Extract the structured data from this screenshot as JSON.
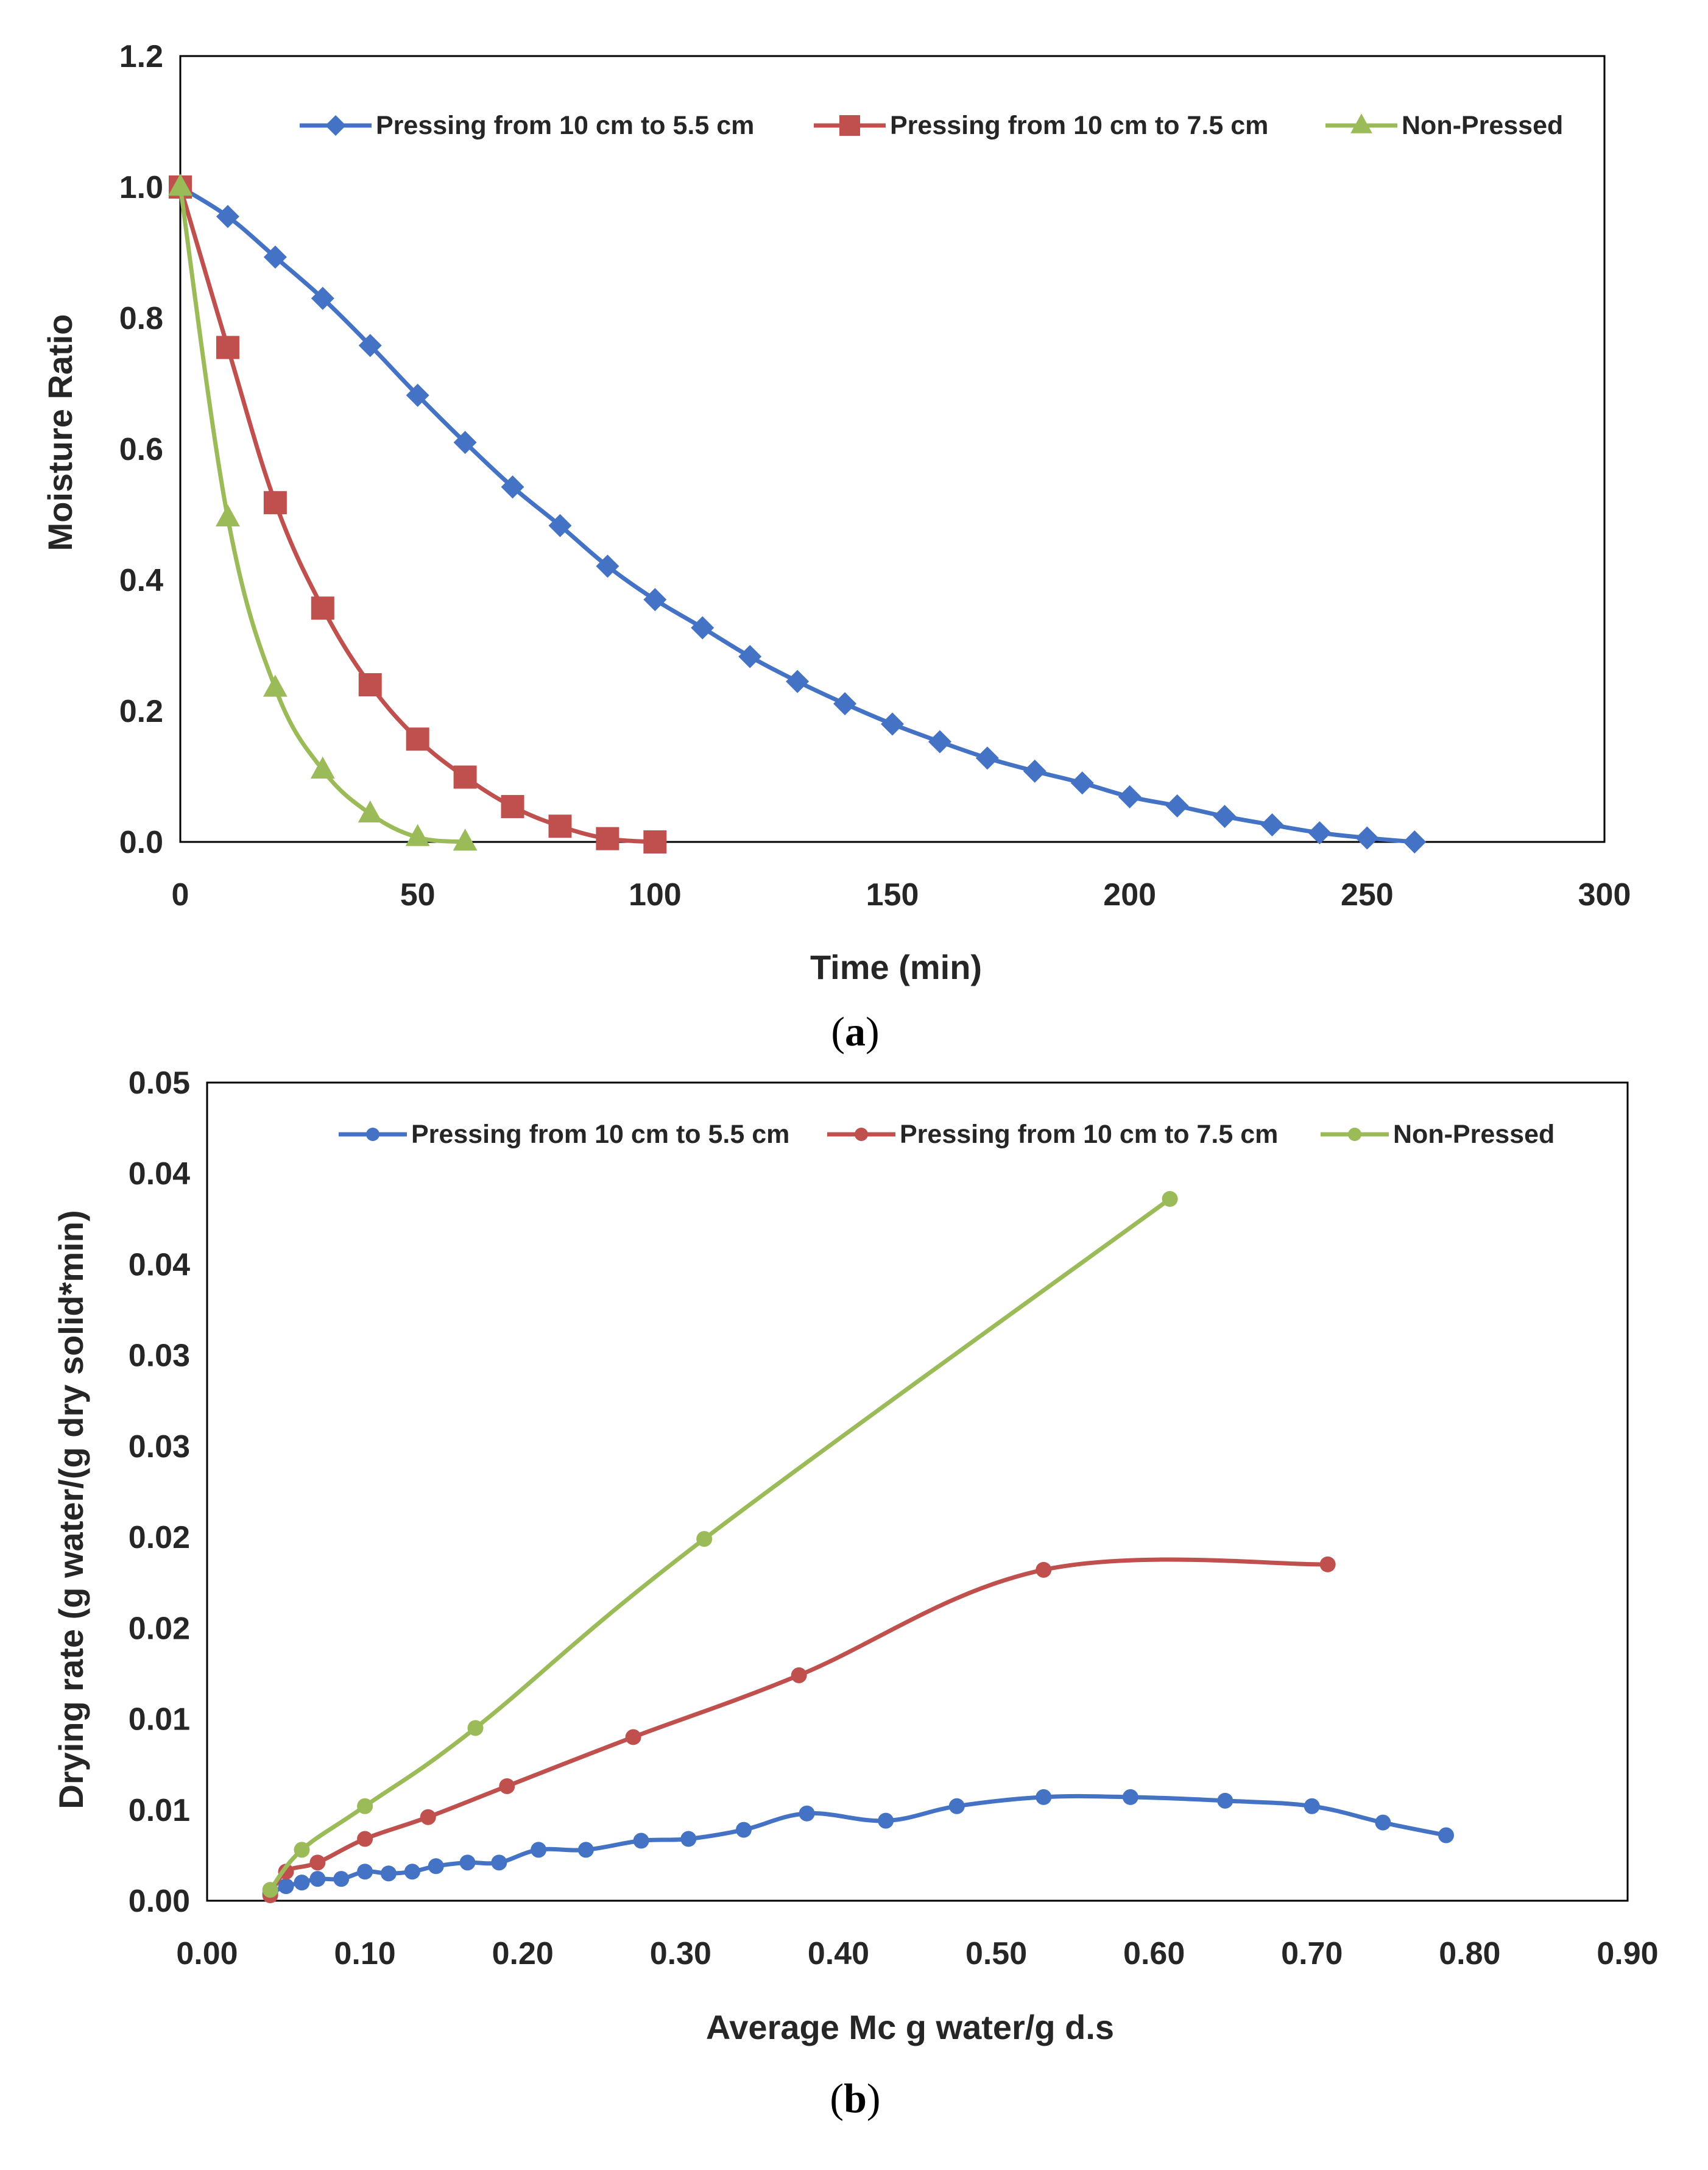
{
  "chart_data": [
    {
      "type": "line",
      "panel": "a",
      "caption_letter": "a",
      "xlabel": "Time (min)",
      "ylabel": "Moisture Ratio",
      "xlim": [
        0,
        300
      ],
      "ylim": [
        0,
        1.2
      ],
      "x_ticks": [
        0,
        50,
        100,
        150,
        200,
        250,
        300
      ],
      "y_ticks": [
        "0.0",
        "0.2",
        "0.4",
        "0.6",
        "0.8",
        "1.0",
        "1.2"
      ],
      "y_tick_values": [
        0,
        0.2,
        0.4,
        0.6,
        0.8,
        1.0,
        1.2
      ],
      "grid": false,
      "legend_position": "top",
      "series": [
        {
          "name": "Pressing from 10 cm to 5.5 cm",
          "color": "#4472C4",
          "marker": "diamond",
          "x": [
            0,
            10,
            20,
            30,
            40,
            50,
            60,
            70,
            80,
            90,
            100,
            110,
            120,
            130,
            140,
            150,
            160,
            170,
            180,
            190,
            200,
            210,
            220,
            230,
            240,
            250,
            260
          ],
          "y": [
            1.0,
            0.955,
            0.893,
            0.83,
            0.758,
            0.682,
            0.61,
            0.542,
            0.483,
            0.421,
            0.37,
            0.327,
            0.283,
            0.245,
            0.211,
            0.18,
            0.153,
            0.128,
            0.108,
            0.09,
            0.069,
            0.055,
            0.039,
            0.026,
            0.014,
            0.006,
            0.0
          ]
        },
        {
          "name": "Pressing from 10 cm to 7.5 cm",
          "color": "#C0504D",
          "marker": "square",
          "x": [
            0,
            10,
            20,
            30,
            40,
            50,
            60,
            70,
            80,
            90,
            100
          ],
          "y": [
            1.0,
            0.755,
            0.518,
            0.357,
            0.24,
            0.157,
            0.099,
            0.054,
            0.024,
            0.005,
            0.0
          ]
        },
        {
          "name": "Non-Pressed",
          "color": "#9BBB59",
          "marker": "triangle",
          "x": [
            0,
            10,
            20,
            30,
            40,
            50,
            60
          ],
          "y": [
            1.0,
            0.495,
            0.235,
            0.11,
            0.043,
            0.007,
            0.0
          ]
        }
      ]
    },
    {
      "type": "line",
      "panel": "b",
      "caption_letter": "b",
      "xlabel": "Average Mc g water/g d.s",
      "ylabel": "Drying rate   (g water/(g dry solid*min)",
      "xlim": [
        0,
        0.9
      ],
      "ylim": [
        0,
        0.045
      ],
      "x_ticks": [
        "0.00",
        "0.10",
        "0.20",
        "0.30",
        "0.40",
        "0.50",
        "0.60",
        "0.70",
        "0.80",
        "0.90"
      ],
      "x_tick_values": [
        0,
        0.1,
        0.2,
        0.3,
        0.4,
        0.5,
        0.6,
        0.7,
        0.8,
        0.9
      ],
      "y_ticks": [
        "0.00",
        "0.01",
        "0.01",
        "0.02",
        "0.02",
        "0.03",
        "0.03",
        "0.04",
        "0.04",
        "0.05"
      ],
      "y_tick_values": [
        0,
        0.005,
        0.01,
        0.015,
        0.02,
        0.025,
        0.03,
        0.035,
        0.04,
        0.045
      ],
      "grid": false,
      "legend_position": "top",
      "series": [
        {
          "name": "Pressing from 10 cm to 5.5 cm",
          "color": "#4472C4",
          "marker": "circle",
          "x": [
            0.04,
            0.05,
            0.06,
            0.07,
            0.085,
            0.1,
            0.115,
            0.13,
            0.145,
            0.165,
            0.185,
            0.21,
            0.24,
            0.275,
            0.305,
            0.34,
            0.38,
            0.43,
            0.475,
            0.53,
            0.585,
            0.645,
            0.7,
            0.745,
            0.785
          ],
          "y": [
            0.0004,
            0.0008,
            0.001,
            0.0012,
            0.0012,
            0.0016,
            0.0015,
            0.0016,
            0.0019,
            0.0021,
            0.0021,
            0.0028,
            0.0028,
            0.0033,
            0.0034,
            0.0039,
            0.0048,
            0.0044,
            0.0052,
            0.0057,
            0.0057,
            0.0055,
            0.0052,
            0.0043,
            0.0036
          ]
        },
        {
          "name": "Pressing from 10 cm to 7.5 cm",
          "color": "#C0504D",
          "marker": "circle",
          "x": [
            0.04,
            0.05,
            0.07,
            0.1,
            0.14,
            0.19,
            0.27,
            0.375,
            0.53,
            0.71
          ],
          "y": [
            0.0003,
            0.0016,
            0.0021,
            0.0034,
            0.0046,
            0.0063,
            0.009,
            0.0124,
            0.0182,
            0.0185
          ]
        },
        {
          "name": "Non-Pressed",
          "color": "#9BBB59",
          "marker": "circle",
          "x": [
            0.04,
            0.06,
            0.1,
            0.17,
            0.315,
            0.61
          ],
          "y": [
            0.0006,
            0.0028,
            0.0052,
            0.0095,
            0.0199,
            0.0386
          ]
        }
      ]
    }
  ]
}
